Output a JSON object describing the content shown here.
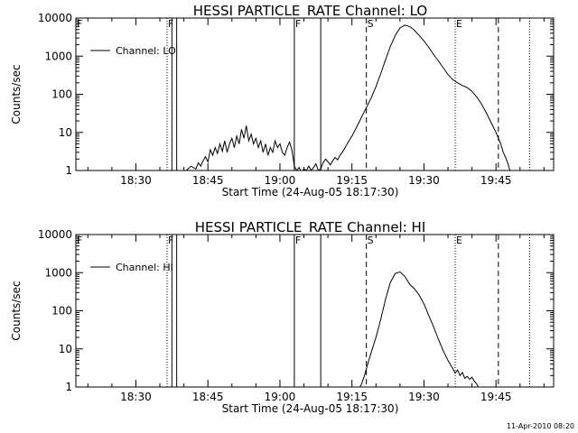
{
  "chart_data": [
    {
      "type": "line",
      "title": "HESSI PARTICLE_RATE Channel: LO",
      "xlabel": "Start Time (24-Aug-05 18:17:30)",
      "ylabel": "Counts/sec",
      "yscale": "log",
      "ylim": [
        1,
        10000
      ],
      "xlim": [
        "18:17:30",
        "19:57:00"
      ],
      "xticks": [
        "18:30",
        "18:45",
        "19:00",
        "19:15",
        "19:30",
        "19:45"
      ],
      "yticks": [
        "1",
        "10",
        "100",
        "1000",
        "10000"
      ],
      "legend": {
        "placement": "top-left",
        "entries": [
          "Channel: LO"
        ]
      },
      "grid": false,
      "markers": [
        {
          "label": "F",
          "time": "18:17:30",
          "style": "dotted"
        },
        {
          "label": "F",
          "time": "18:36:30",
          "style": "dotted"
        },
        {
          "label": "",
          "time": "18:37:30",
          "style": "solid"
        },
        {
          "label": "",
          "time": "18:38:30",
          "style": "solid"
        },
        {
          "label": "F",
          "time": "19:03:00",
          "style": "solid"
        },
        {
          "label": "",
          "time": "19:08:30",
          "style": "solid"
        },
        {
          "label": "S",
          "time": "19:18:00",
          "style": "dashed"
        },
        {
          "label": "E",
          "time": "19:36:30",
          "style": "dotted"
        },
        {
          "label": "",
          "time": "19:45:30",
          "style": "dashed"
        },
        {
          "label": "",
          "time": "19:52:00",
          "style": "dotted"
        }
      ],
      "series": [
        {
          "name": "Channel: LO",
          "x": [
            "18:38:30",
            "18:39:30",
            "18:40:30",
            "18:41:30",
            "18:42:30",
            "18:43:00",
            "18:43:30",
            "18:44:00",
            "18:44:30",
            "18:45:00",
            "18:45:30",
            "18:46:00",
            "18:46:30",
            "18:47:00",
            "18:47:30",
            "18:48:00",
            "18:48:30",
            "18:49:00",
            "18:49:30",
            "18:50:00",
            "18:50:30",
            "18:51:00",
            "18:51:30",
            "18:52:00",
            "18:52:30",
            "18:53:00",
            "18:53:30",
            "18:54:00",
            "18:54:30",
            "18:55:00",
            "18:55:30",
            "18:56:00",
            "18:56:30",
            "18:57:00",
            "18:57:30",
            "18:58:00",
            "18:58:30",
            "18:59:00",
            "18:59:30",
            "19:00:00",
            "19:00:30",
            "19:01:00",
            "19:01:30",
            "19:02:00",
            "19:02:30",
            "19:03:00",
            "19:03:30",
            "19:04:00",
            "19:04:30",
            "19:05:00",
            "19:05:30",
            "19:06:00",
            "19:06:30",
            "19:07:00",
            "19:07:30",
            "19:08:00",
            "19:08:30",
            "19:09:00",
            "19:09:30",
            "19:10:00",
            "19:10:30",
            "19:11:00",
            "19:11:30",
            "19:12:00",
            "19:12:30",
            "19:13:00",
            "19:14:00",
            "19:15:00",
            "19:16:00",
            "19:17:00",
            "19:18:00",
            "19:19:00",
            "19:20:00",
            "19:21:00",
            "19:22:00",
            "19:23:00",
            "19:24:00",
            "19:25:00",
            "19:26:00",
            "19:27:00",
            "19:28:00",
            "19:29:00",
            "19:30:00",
            "19:31:00",
            "19:32:00",
            "19:33:00",
            "19:34:00",
            "19:35:00",
            "19:36:00",
            "19:37:00",
            "19:38:00",
            "19:39:00",
            "19:40:00",
            "19:41:00",
            "19:42:00",
            "19:43:00",
            "19:44:00",
            "19:45:00",
            "19:45:30",
            "19:46:00",
            "19:46:30",
            "19:47:00",
            "19:47:30",
            "19:48:00"
          ],
          "y": [
            1,
            0.9,
            1,
            1.3,
            1.1,
            1.6,
            1.3,
            1.8,
            2.3,
            1.7,
            3.5,
            2.5,
            4,
            2.8,
            5,
            3.2,
            6,
            3,
            5,
            7,
            4,
            8,
            5,
            12,
            7,
            15,
            6,
            9,
            5,
            7,
            4,
            6,
            3,
            5,
            2.5,
            4,
            3,
            6,
            4,
            5,
            3,
            2.5,
            4,
            5.5,
            3.5,
            1.3,
            1,
            1.2,
            0.9,
            1.1,
            1,
            1.3,
            1,
            1.2,
            1.5,
            1,
            1.1,
            1.6,
            2,
            1.7,
            1.4,
            1.8,
            2.2,
            1.9,
            2.5,
            3,
            5,
            8,
            14,
            25,
            45,
            80,
            160,
            350,
            800,
            1800,
            3500,
            5500,
            6500,
            6000,
            4800,
            3500,
            2500,
            1700,
            1100,
            750,
            500,
            330,
            240,
            200,
            170,
            150,
            120,
            85,
            55,
            32,
            18,
            10,
            7,
            5,
            3,
            2.2,
            1.5,
            0.9
          ]
        }
      ]
    },
    {
      "type": "line",
      "title": "HESSI PARTICLE_RATE Channel: HI",
      "xlabel": "Start Time (24-Aug-05 18:17:30)",
      "ylabel": "Counts/sec",
      "yscale": "log",
      "ylim": [
        1,
        10000
      ],
      "xlim": [
        "18:17:30",
        "19:57:00"
      ],
      "xticks": [
        "18:30",
        "18:45",
        "19:00",
        "19:15",
        "19:30",
        "19:45"
      ],
      "yticks": [
        "1",
        "10",
        "100",
        "1000",
        "10000"
      ],
      "legend": {
        "placement": "top-left",
        "entries": [
          "Channel: HI"
        ]
      },
      "grid": false,
      "markers": [
        {
          "label": "F",
          "time": "18:17:30",
          "style": "dotted"
        },
        {
          "label": "F",
          "time": "18:36:30",
          "style": "dotted"
        },
        {
          "label": "",
          "time": "18:37:30",
          "style": "solid"
        },
        {
          "label": "",
          "time": "18:38:30",
          "style": "solid"
        },
        {
          "label": "F",
          "time": "19:03:00",
          "style": "solid"
        },
        {
          "label": "",
          "time": "19:08:30",
          "style": "solid"
        },
        {
          "label": "S",
          "time": "19:18:00",
          "style": "dashed"
        },
        {
          "label": "E",
          "time": "19:36:30",
          "style": "dotted"
        },
        {
          "label": "",
          "time": "19:45:30",
          "style": "dashed"
        },
        {
          "label": "",
          "time": "19:52:00",
          "style": "dotted"
        }
      ],
      "series": [
        {
          "name": "Channel: HI",
          "x": [
            "19:16:30",
            "19:17:00",
            "19:17:30",
            "19:18:00",
            "19:18:30",
            "19:19:00",
            "19:20:00",
            "19:21:00",
            "19:22:00",
            "19:23:00",
            "19:24:00",
            "19:25:00",
            "19:26:00",
            "19:27:00",
            "19:28:00",
            "19:29:00",
            "19:30:00",
            "19:31:00",
            "19:32:00",
            "19:33:00",
            "19:34:00",
            "19:35:00",
            "19:36:00",
            "19:36:30",
            "19:37:00",
            "19:37:30",
            "19:38:00",
            "19:38:30",
            "19:39:00",
            "19:39:30",
            "19:40:00",
            "19:40:30",
            "19:41:00",
            "19:41:30"
          ],
          "y": [
            0.9,
            1.2,
            1.8,
            3,
            5,
            8,
            20,
            60,
            200,
            550,
            950,
            1050,
            800,
            500,
            380,
            260,
            150,
            75,
            38,
            18,
            9,
            5,
            3,
            2.3,
            2.8,
            2,
            2.4,
            1.7,
            1.9,
            1.6,
            1.8,
            1.4,
            1.2,
            0.9
          ]
        }
      ]
    }
  ],
  "footer": {
    "timestamp": "11-Apr-2010 08:20"
  }
}
